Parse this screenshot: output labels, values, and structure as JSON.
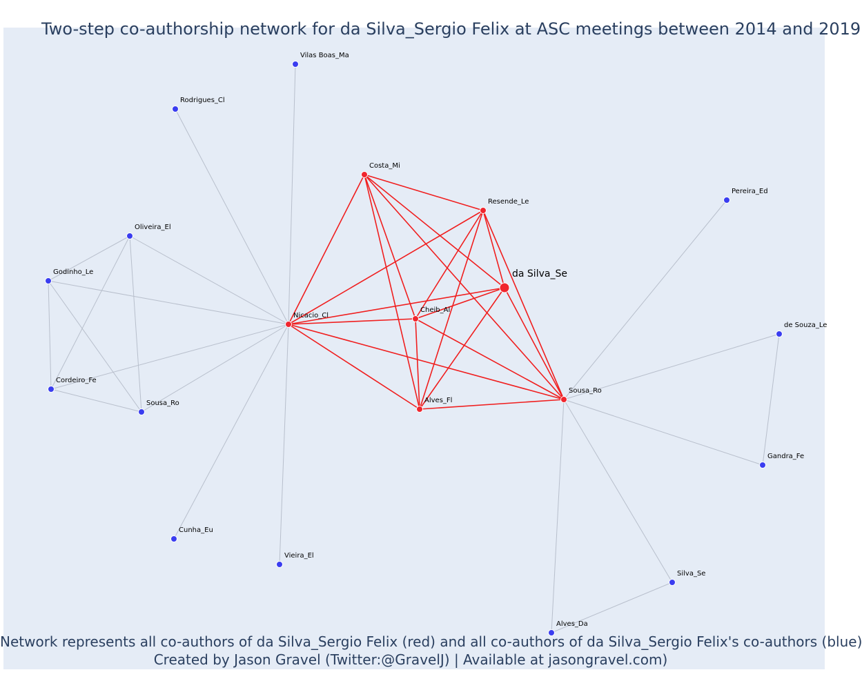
{
  "title": "Two-step co-authorship network for da Silva_Sergio Felix at ASC meetings between 2014 and 2019",
  "caption_line1": "Network represents all co-authors of da Silva_Sergio Felix (red) and all co-authors of da Silva_Sergio Felix's co-authors (blue)",
  "caption_line2": "Created by Jason Gravel (Twitter:@GravelJ) | Available at jasongravel.com)",
  "colors": {
    "background": "#e5ecf6",
    "coauthor_node": "#f0262e",
    "coauthor_edge": "#f01e1e",
    "second_step_node": "#3a3df0",
    "second_step_edge": "#b8bfcc",
    "title_text": "#2a3f5f"
  },
  "chart_data": {
    "type": "network",
    "title": "Two-step co-authorship network for da Silva_Sergio Felix at ASC meetings between 2014 and 2019",
    "nodes": [
      {
        "id": "da_silva",
        "label": "da Silva_Se",
        "group": "focal"
      },
      {
        "id": "costa",
        "label": "Costa_Mi",
        "group": "coauthor"
      },
      {
        "id": "resende",
        "label": "Resende_Le",
        "group": "coauthor"
      },
      {
        "id": "cheib",
        "label": "Cheib_Al",
        "group": "coauthor"
      },
      {
        "id": "nicacio",
        "label": "Nicacio_Cl",
        "group": "coauthor"
      },
      {
        "id": "alves_fl",
        "label": "Alves_Fl",
        "group": "coauthor"
      },
      {
        "id": "sousa_ro_r",
        "label": "Sousa_Ro",
        "group": "coauthor"
      },
      {
        "id": "vilas",
        "label": "Vilas Boas_Ma",
        "group": "second"
      },
      {
        "id": "rodrigues",
        "label": "Rodrigues_Cl",
        "group": "second"
      },
      {
        "id": "oliveira",
        "label": "Oliveira_El",
        "group": "second"
      },
      {
        "id": "godinho",
        "label": "Godinho_Le",
        "group": "second"
      },
      {
        "id": "cordeiro",
        "label": "Cordeiro_Fe",
        "group": "second"
      },
      {
        "id": "sousa_ro_b",
        "label": "Sousa_Ro",
        "group": "second"
      },
      {
        "id": "cunha",
        "label": "Cunha_Eu",
        "group": "second"
      },
      {
        "id": "vieira",
        "label": "Vieira_El",
        "group": "second"
      },
      {
        "id": "pereira",
        "label": "Pereira_Ed",
        "group": "second"
      },
      {
        "id": "desouza",
        "label": "de Souza_Le",
        "group": "second"
      },
      {
        "id": "gandra",
        "label": "Gandra_Fe",
        "group": "second"
      },
      {
        "id": "silva_se",
        "label": "Silva_Se",
        "group": "second"
      },
      {
        "id": "alves_da",
        "label": "Alves_Da",
        "group": "second"
      }
    ],
    "edges": [
      [
        "costa",
        "resende",
        "red"
      ],
      [
        "costa",
        "da_silva",
        "red"
      ],
      [
        "costa",
        "nicacio",
        "red"
      ],
      [
        "costa",
        "cheib",
        "red"
      ],
      [
        "costa",
        "alves_fl",
        "red"
      ],
      [
        "costa",
        "sousa_ro_r",
        "red"
      ],
      [
        "resende",
        "nicacio",
        "red"
      ],
      [
        "resende",
        "cheib",
        "red"
      ],
      [
        "resende",
        "alves_fl",
        "red"
      ],
      [
        "resende",
        "da_silva",
        "red"
      ],
      [
        "resende",
        "sousa_ro_r",
        "red"
      ],
      [
        "da_silva",
        "nicacio",
        "red"
      ],
      [
        "da_silva",
        "cheib",
        "red"
      ],
      [
        "da_silva",
        "alves_fl",
        "red"
      ],
      [
        "da_silva",
        "sousa_ro_r",
        "red"
      ],
      [
        "nicacio",
        "cheib",
        "red"
      ],
      [
        "nicacio",
        "alves_fl",
        "red"
      ],
      [
        "nicacio",
        "sousa_ro_r",
        "red"
      ],
      [
        "cheib",
        "alves_fl",
        "red"
      ],
      [
        "cheib",
        "sousa_ro_r",
        "red"
      ],
      [
        "alves_fl",
        "sousa_ro_r",
        "red"
      ],
      [
        "nicacio",
        "vilas",
        "grey"
      ],
      [
        "nicacio",
        "rodrigues",
        "grey"
      ],
      [
        "nicacio",
        "oliveira",
        "grey"
      ],
      [
        "nicacio",
        "godinho",
        "grey"
      ],
      [
        "nicacio",
        "cordeiro",
        "grey"
      ],
      [
        "nicacio",
        "sousa_ro_b",
        "grey"
      ],
      [
        "nicacio",
        "cunha",
        "grey"
      ],
      [
        "nicacio",
        "vieira",
        "grey"
      ],
      [
        "oliveira",
        "godinho",
        "grey"
      ],
      [
        "oliveira",
        "cordeiro",
        "grey"
      ],
      [
        "oliveira",
        "sousa_ro_b",
        "grey"
      ],
      [
        "godinho",
        "cordeiro",
        "grey"
      ],
      [
        "godinho",
        "sousa_ro_b",
        "grey"
      ],
      [
        "cordeiro",
        "sousa_ro_b",
        "grey"
      ],
      [
        "sousa_ro_r",
        "pereira",
        "grey"
      ],
      [
        "sousa_ro_r",
        "desouza",
        "grey"
      ],
      [
        "sousa_ro_r",
        "gandra",
        "grey"
      ],
      [
        "sousa_ro_r",
        "silva_se",
        "grey"
      ],
      [
        "sousa_ro_r",
        "alves_da",
        "grey"
      ],
      [
        "desouza",
        "gandra",
        "grey"
      ],
      [
        "silva_se",
        "alves_da",
        "grey"
      ]
    ]
  }
}
